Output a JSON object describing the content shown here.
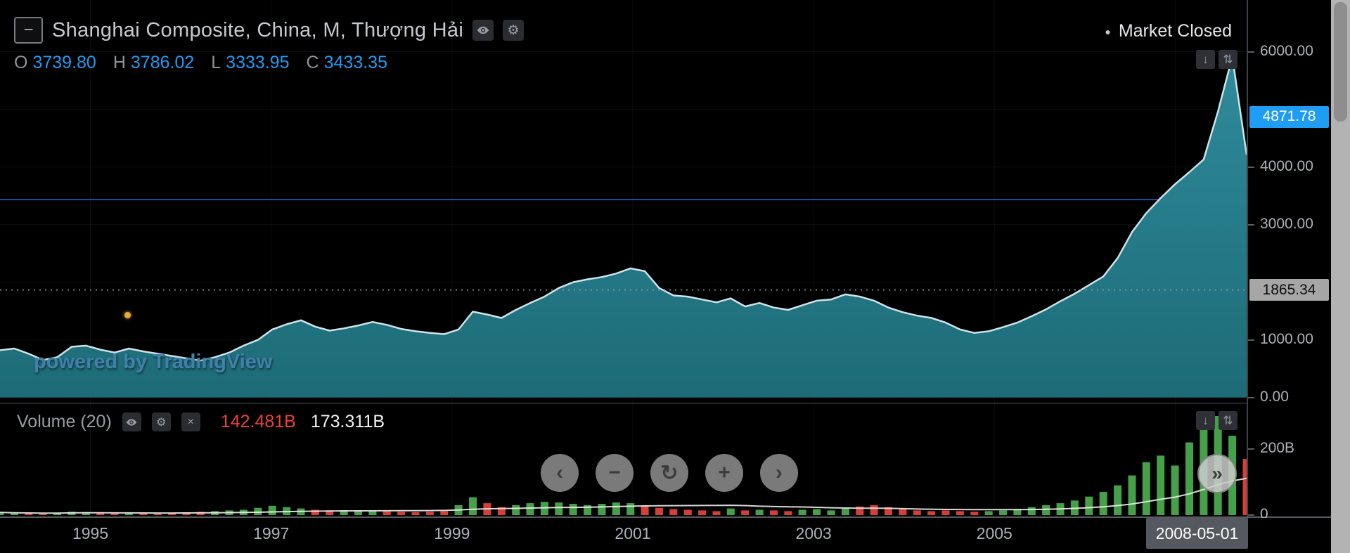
{
  "header": {
    "symbol_title": "Shanghai Composite, China, M, Thượng Hải",
    "ohlc": {
      "o_label": "O",
      "o": "3739.80",
      "h_label": "H",
      "h": "3786.02",
      "l_label": "L",
      "l": "3333.95",
      "c_label": "C",
      "c": "3433.35"
    },
    "market_status": "Market Closed"
  },
  "icons": {
    "collapse": "−",
    "gear": "⚙",
    "close": "×",
    "status_dot": "●"
  },
  "pane_buttons": {
    "scroll_down": "↓",
    "maximize": "⇅"
  },
  "nav": {
    "pan_left": "‹",
    "zoom_out": "−",
    "reset": "↻",
    "zoom_in": "+",
    "pan_right": "›",
    "fast_forward": "»"
  },
  "watermark": {
    "text": "powered by TradingView"
  },
  "price_axis": {
    "labels": [
      {
        "text": "6000.00",
        "price": 6000
      },
      {
        "text": "4000.00",
        "price": 4000
      },
      {
        "text": "3000.00",
        "price": 3000
      },
      {
        "text": "1000.00",
        "price": 1000
      },
      {
        "text": "0.00",
        "price": 0
      }
    ],
    "last_price_badge": {
      "text": "4871.78",
      "price": 4871.78
    },
    "level_badge": {
      "text": "1865.34",
      "price": 1865.34
    }
  },
  "volume_pane": {
    "title": "Volume (20)",
    "ma_value": "142.481B",
    "last_value": "173.311B",
    "axis_labels": [
      {
        "text": "200B",
        "value": 200
      },
      {
        "text": "0",
        "value": 0
      }
    ]
  },
  "time_axis": {
    "ticks": [
      {
        "label": "1995",
        "year": 1995
      },
      {
        "label": "1997",
        "year": 1997
      },
      {
        "label": "1999",
        "year": 1999
      },
      {
        "label": "2001",
        "year": 2001
      },
      {
        "label": "2003",
        "year": 2003
      },
      {
        "label": "2005",
        "year": 2005
      }
    ],
    "date_badge": "2008-05-01"
  },
  "colors": {
    "accent_blue": "#1f9cf4",
    "badge_gray": "#a6a6a6",
    "date_badge_gray": "#55585e",
    "legend_red": "#ef4138"
  },
  "chart_data": {
    "type": "area",
    "title": "Shanghai Composite monthly index with volume",
    "x_start_year": 1994.0,
    "x_end_year": 2007.8,
    "price_ylim": [
      0,
      6200
    ],
    "volume_ylim": [
      0,
      320
    ],
    "volume_unit": "B",
    "grid_years": [
      1995,
      1997,
      1999,
      2001,
      2003,
      2005,
      2007
    ],
    "close_line_price": 3433.35,
    "level_line_price": 1865.34,
    "last_price": 4871.78,
    "price_points": [
      820,
      850,
      760,
      650,
      700,
      880,
      900,
      830,
      780,
      850,
      800,
      760,
      720,
      680,
      640,
      700,
      780,
      900,
      1000,
      1180,
      1270,
      1340,
      1230,
      1160,
      1200,
      1250,
      1310,
      1260,
      1190,
      1150,
      1120,
      1100,
      1180,
      1490,
      1440,
      1380,
      1520,
      1640,
      1750,
      1900,
      2000,
      2050,
      2090,
      2150,
      2240,
      2190,
      1900,
      1770,
      1750,
      1700,
      1650,
      1720,
      1580,
      1640,
      1560,
      1520,
      1600,
      1680,
      1700,
      1790,
      1750,
      1680,
      1560,
      1480,
      1420,
      1380,
      1300,
      1180,
      1120,
      1150,
      1220,
      1300,
      1410,
      1530,
      1670,
      1800,
      1950,
      2100,
      2420,
      2870,
      3200,
      3460,
      3700,
      3910,
      4130,
      4960,
      5910,
      4210
    ],
    "volume_values": [
      8,
      6,
      5,
      4,
      6,
      10,
      9,
      7,
      5,
      6,
      5,
      4,
      6,
      8,
      10,
      12,
      14,
      16,
      22,
      28,
      24,
      20,
      16,
      14,
      15,
      13,
      12,
      11,
      10,
      9,
      10,
      12,
      30,
      54,
      36,
      24,
      30,
      36,
      40,
      38,
      34,
      30,
      34,
      38,
      36,
      28,
      22,
      18,
      16,
      14,
      12,
      20,
      14,
      16,
      14,
      12,
      16,
      18,
      14,
      20,
      26,
      30,
      24,
      18,
      14,
      12,
      14,
      12,
      10,
      12,
      14,
      18,
      24,
      30,
      36,
      44,
      56,
      70,
      90,
      120,
      160,
      180,
      150,
      220,
      280,
      300,
      240,
      170
    ],
    "colors": {
      "area_top": "#2f8b9b",
      "area_bottom": "#1d6b77",
      "line": "#cfe3e8",
      "vol_up": "#45a049",
      "vol_down": "#d43f36",
      "close_line": "#2a62d9",
      "level_line": "#9598a1",
      "vol_ma": "#eeeeee",
      "grid": "rgba(255,255,255,0.055)"
    }
  }
}
